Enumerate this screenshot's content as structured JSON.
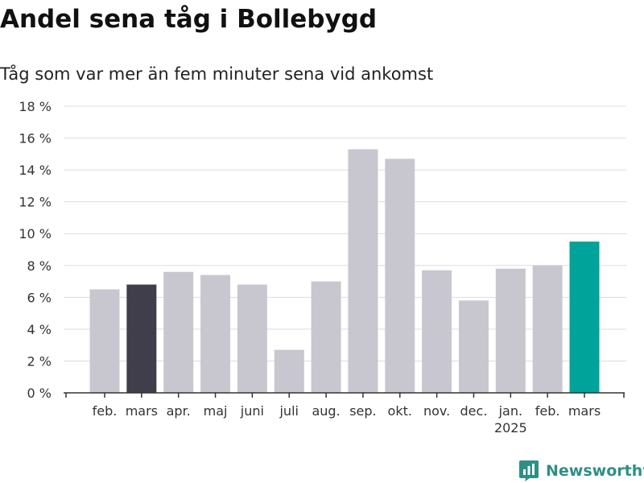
{
  "chart_data": {
    "type": "bar",
    "title": "Andel sena tåg i Bollebygd",
    "subtitle": "Tåg som var mer än fem minuter sena vid ankomst",
    "xlabel": "",
    "ylabel": "",
    "ylim": [
      0,
      18
    ],
    "y_ticks": [
      0,
      2,
      4,
      6,
      8,
      10,
      12,
      14,
      16,
      18
    ],
    "y_tick_labels": [
      "0 %",
      "2 %",
      "4 %",
      "6 %",
      "8 %",
      "10 %",
      "12 %",
      "14 %",
      "16 %",
      "18 %"
    ],
    "grid": true,
    "categories": [
      "feb.",
      "mars",
      "apr.",
      "maj",
      "juni",
      "juli",
      "aug.",
      "sep.",
      "okt.",
      "nov.",
      "dec.",
      "jan.",
      "feb.",
      "mars"
    ],
    "year_labels": [
      {
        "index": 11,
        "label": "2025"
      }
    ],
    "values": [
      6.5,
      6.8,
      7.6,
      7.4,
      6.8,
      2.7,
      7.0,
      15.3,
      14.7,
      7.7,
      5.8,
      7.8,
      8.0,
      9.5
    ],
    "bar_colors": [
      "#c8c7d0",
      "#403e4b",
      "#c8c7d0",
      "#c8c7d0",
      "#c8c7d0",
      "#c8c7d0",
      "#c8c7d0",
      "#c8c7d0",
      "#c8c7d0",
      "#c8c7d0",
      "#c8c7d0",
      "#c8c7d0",
      "#c8c7d0",
      "#00a39a"
    ]
  },
  "colors": {
    "default_bar": "#c8c7d0",
    "highlight_previous_year": "#403e4b",
    "highlight_current": "#00a39a",
    "gridline": "#dddddd",
    "axis": "#333333",
    "brand": "#2f8f86"
  },
  "brand": {
    "name": "Newsworthy",
    "icon": "newsworthy-logo-icon"
  }
}
